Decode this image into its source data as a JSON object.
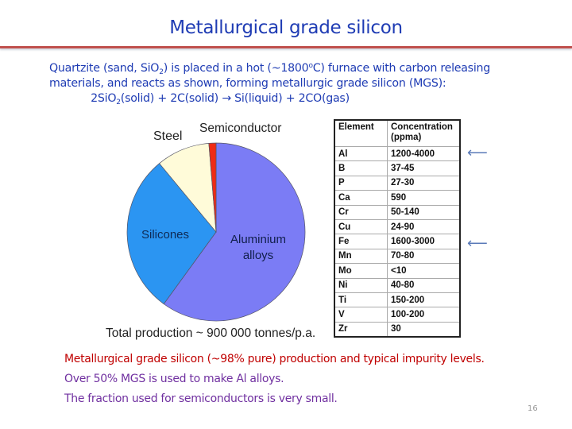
{
  "slide": {
    "title": "Metallurgical grade silicon",
    "page_number": "16"
  },
  "intro": {
    "line1_a": "Quartzite (sand, SiO",
    "line1_sub": "2",
    "line1_b": ") is placed in a hot (~1800",
    "line1_sup": "o",
    "line1_c": "C) furnace with carbon releasing",
    "line2": "materials, and reacts as shown, forming metallurgic grade silicon (MGS):",
    "eq_a": "2SiO",
    "eq_sub": "2",
    "eq_b": "(solid) + 2C(solid) → Si(liquid) + 2CO(gas)"
  },
  "chart_data": {
    "type": "pie",
    "title": "",
    "caption": "Total production ~ 900  000 tonnes/p.a.",
    "slices": [
      {
        "label": "Aluminium alloys",
        "value": 60,
        "color": "#7b7cf5"
      },
      {
        "label": "Silicones",
        "value": 29,
        "color": "#2b95f2"
      },
      {
        "label": "Steel",
        "value": 9.7,
        "color": "#fffbd9"
      },
      {
        "label": "Semiconductor",
        "value": 1.3,
        "color": "#ef2b14"
      }
    ],
    "start_angle": "top, clockwise"
  },
  "pie_labels": {
    "steel": "Steel",
    "semiconductor": "Semiconductor",
    "silicones": "Silicones",
    "aluminium_1": "Aluminium",
    "aluminium_2": "alloys"
  },
  "table": {
    "headers": [
      "Element",
      "Concentration",
      "(ppma)"
    ],
    "rows": [
      [
        "Al",
        "1200-4000"
      ],
      [
        "B",
        "37-45"
      ],
      [
        "P",
        "27-30"
      ],
      [
        "Ca",
        "590"
      ],
      [
        "Cr",
        "50-140"
      ],
      [
        "Cu",
        "24-90"
      ],
      [
        "Fe",
        "1600-3000"
      ],
      [
        "Mn",
        "70-80"
      ],
      [
        "Mo",
        "<10"
      ],
      [
        "Ni",
        "40-80"
      ],
      [
        "Ti",
        "150-200"
      ],
      [
        "V",
        "100-200"
      ],
      [
        "Zr",
        "30"
      ]
    ],
    "arrow_glyph": "⟵"
  },
  "notes": [
    "Metallurgical grade silicon (~98% pure) production and typical impurity levels.",
    "Over 50% MGS is used to make Al alloys.",
    "The fraction used for semiconductors is very small."
  ]
}
